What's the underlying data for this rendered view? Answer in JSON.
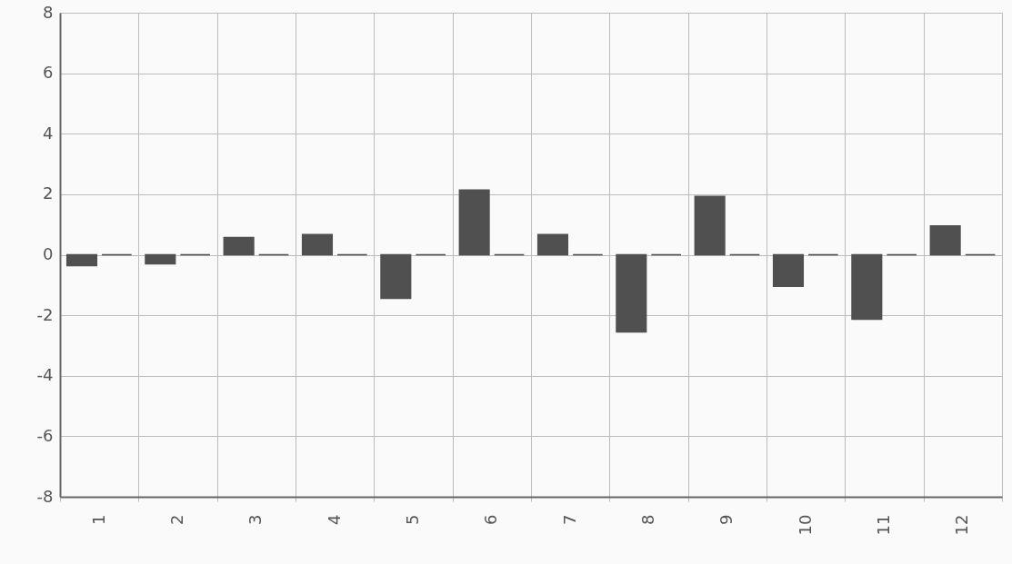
{
  "chart_data": {
    "type": "bar",
    "categories": [
      "1",
      "2",
      "3",
      "4",
      "5",
      "6",
      "7",
      "8",
      "9",
      "10",
      "11",
      "12"
    ],
    "series": [
      {
        "color": "#505050",
        "values": [
          -0.36,
          -0.3,
          0.57,
          0.67,
          -1.44,
          2.14,
          0.67,
          -2.55,
          1.93,
          -1.04,
          -2.13,
          0.95
        ]
      },
      {
        "color": "#505050",
        "values": [
          0,
          0,
          0,
          0,
          0,
          0,
          0,
          0,
          0,
          0,
          0,
          0
        ]
      }
    ],
    "ylim": [
      -8,
      8
    ],
    "yticks": [
      -8,
      -6,
      -4,
      -2,
      0,
      2,
      4,
      6,
      8
    ],
    "grid": true
  }
}
